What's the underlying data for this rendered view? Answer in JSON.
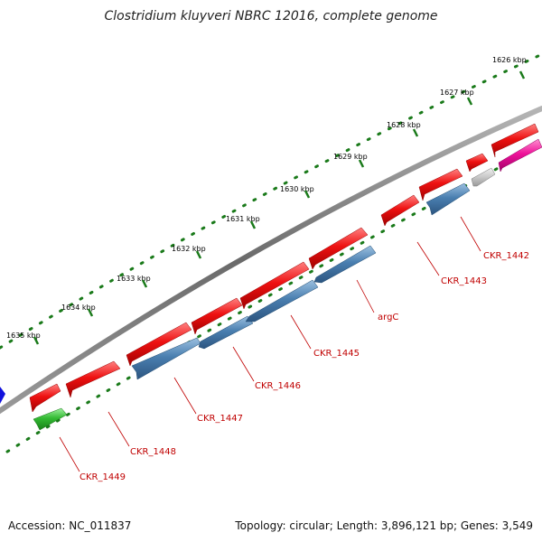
{
  "title": "Clostridium kluyveri NBRC 12016, complete genome",
  "accession": "Accession: NC_011837",
  "summary": "Topology: circular; Length: 3,896,121 bp; Genes: 3,549",
  "colors": {
    "backbone": "#7a7a7a",
    "ruler": "#1a7a1a",
    "cds_forward": "#ee1111",
    "cds_reverse": "#4a7fb0",
    "cds_green": "#33bb33",
    "cds_gray": "#c8c8c8",
    "cds_pink": "#ee1199",
    "cds_blue": "#1111dd",
    "label": "#c00000"
  },
  "ruler": {
    "ticks": [
      "1626 kbp",
      "1627 kbp",
      "1628 kbp",
      "1629 kbp",
      "1630 kbp",
      "1631 kbp",
      "1632 kbp",
      "1633 kbp",
      "1634 kbp",
      "1635 kbp"
    ]
  },
  "genes": [
    {
      "label": "CKR_1442"
    },
    {
      "label": "CKR_1443"
    },
    {
      "label": "argC"
    },
    {
      "label": "CKR_1445"
    },
    {
      "label": "CKR_1446"
    },
    {
      "label": "CKR_1447"
    },
    {
      "label": "CKR_1448"
    },
    {
      "label": "CKR_1449"
    }
  ]
}
